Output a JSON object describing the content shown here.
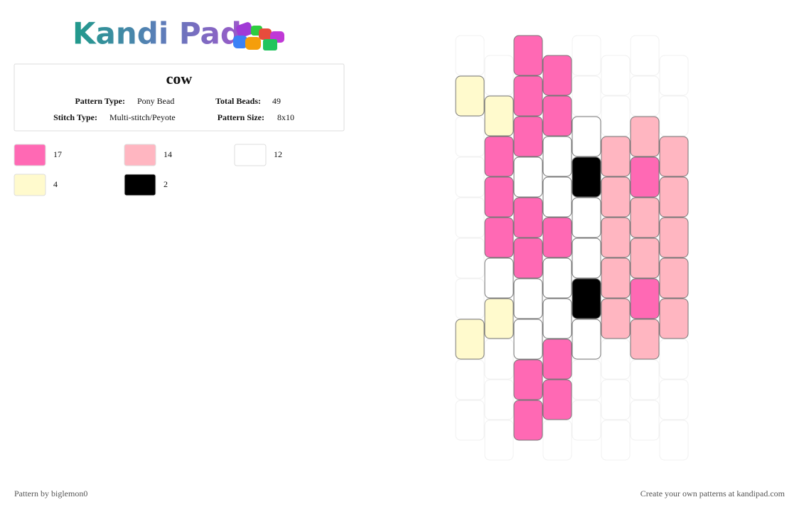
{
  "logo": "Kandi Pad",
  "title": "cow",
  "info": {
    "pattern_type_label": "Pattern Type:",
    "pattern_type": "Pony Bead",
    "total_beads_label": "Total Beads:",
    "total_beads": 49,
    "stitch_type_label": "Stitch Type:",
    "stitch_type": "Multi-stitch/Peyote",
    "pattern_size_label": "Pattern Size:",
    "pattern_size": "8x10"
  },
  "palette": [
    {
      "color": "#ff69b4",
      "count": 17
    },
    {
      "color": "#ffb6c1",
      "count": 14
    },
    {
      "color": "#ffffff",
      "count": 12
    },
    {
      "color": "#fffacd",
      "count": 4
    },
    {
      "color": "#000000",
      "count": 2
    }
  ],
  "grid_columns": [
    [
      null,
      "#fffacd",
      null,
      null,
      null,
      null,
      null,
      "#fffacd",
      null,
      null
    ],
    [
      null,
      "#fffacd",
      "#ff69b4",
      "#ff69b4",
      "#ff69b4",
      "#ffffff",
      "#fffacd",
      null,
      null,
      null
    ],
    [
      "#ff69b4",
      "#ff69b4",
      "#ff69b4",
      "#ffffff",
      "#ff69b4",
      "#ff69b4",
      "#ffffff",
      "#ffffff",
      "#ff69b4",
      "#ff69b4"
    ],
    [
      "#ff69b4",
      "#ff69b4",
      "#ffffff",
      "#ffffff",
      "#ff69b4",
      "#ffffff",
      "#ffffff",
      "#ff69b4",
      "#ff69b4",
      null
    ],
    [
      null,
      null,
      "#ffffff",
      "#000000",
      "#ffffff",
      "#ffffff",
      "#000000",
      "#ffffff",
      null,
      null
    ],
    [
      null,
      null,
      "#ffb6c1",
      "#ffb6c1",
      "#ffb6c1",
      "#ffb6c1",
      "#ffb6c1",
      null,
      null,
      null
    ],
    [
      null,
      null,
      "#ffb6c1",
      "#ff69b4",
      "#ffb6c1",
      "#ffb6c1",
      "#ff69b4",
      "#ffb6c1",
      null,
      null
    ],
    [
      null,
      null,
      "#ffb6c1",
      "#ffb6c1",
      "#ffb6c1",
      "#ffb6c1",
      "#ffb6c1",
      null,
      null,
      null
    ]
  ],
  "footer": {
    "credit": "Pattern by biglemon0",
    "promo": "Create your own patterns at kandipad.com"
  }
}
